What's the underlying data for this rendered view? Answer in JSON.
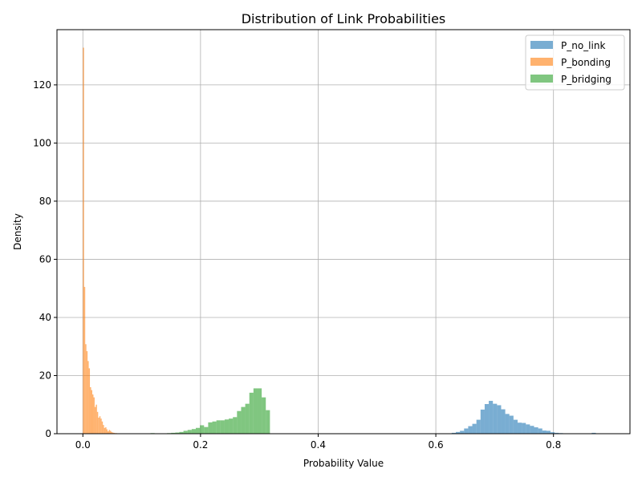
{
  "chart_data": {
    "type": "histogram",
    "title": "Distribution of Link Probabilities",
    "xlabel": "Probability Value",
    "ylabel": "Density",
    "xlim": [
      -0.044,
      0.93
    ],
    "ylim": [
      0,
      139
    ],
    "xticks": [
      0.0,
      0.2,
      0.4,
      0.6,
      0.8
    ],
    "xtick_labels": [
      "0.0",
      "0.2",
      "0.4",
      "0.6",
      "0.8"
    ],
    "yticks": [
      0,
      20,
      40,
      60,
      80,
      100,
      120
    ],
    "ytick_labels": [
      "0",
      "20",
      "40",
      "60",
      "80",
      "100",
      "120"
    ],
    "grid": true,
    "legend_position": "upper right",
    "series": [
      {
        "name": "P_no_link",
        "color": "#1f77b4",
        "opacity": 0.6,
        "bin_edges": [
          0.627,
          0.634,
          0.641,
          0.648,
          0.655,
          0.662,
          0.669,
          0.676,
          0.683,
          0.69,
          0.697,
          0.704,
          0.711,
          0.718,
          0.725,
          0.732,
          0.739,
          0.746,
          0.753,
          0.76,
          0.767,
          0.774,
          0.781,
          0.788,
          0.795,
          0.802,
          0.809,
          0.816,
          0.823,
          0.83,
          0.837,
          0.844,
          0.851,
          0.858,
          0.865,
          0.872,
          0.879,
          0.886
        ],
        "values": [
          0.3,
          0.6,
          1.0,
          1.8,
          2.6,
          3.4,
          4.8,
          8.3,
          10.2,
          11.3,
          10.3,
          9.8,
          8.4,
          6.8,
          6.2,
          4.8,
          3.8,
          3.7,
          3.2,
          2.7,
          2.2,
          1.8,
          1.1,
          1.0,
          0.5,
          0.3,
          0.2,
          0.1,
          0.1,
          0.0,
          0.1,
          0.0,
          0.0,
          0.0,
          0.3,
          0.0,
          0.0
        ]
      },
      {
        "name": "P_bonding",
        "color": "#ff7f0e",
        "opacity": 0.6,
        "bin_edges": [
          0.0,
          0.002,
          0.004,
          0.006,
          0.008,
          0.01,
          0.012,
          0.014,
          0.016,
          0.018,
          0.02,
          0.022,
          0.024,
          0.026,
          0.028,
          0.03,
          0.032,
          0.034,
          0.036,
          0.038,
          0.04,
          0.042,
          0.044,
          0.046,
          0.048,
          0.05,
          0.052,
          0.054,
          0.056,
          0.058,
          0.06,
          0.062,
          0.064,
          0.066,
          0.068,
          0.07
        ],
        "values": [
          132.8,
          50.5,
          30.8,
          28.4,
          25.0,
          22.5,
          16.0,
          15.0,
          13.5,
          12.5,
          9.2,
          10.0,
          7.5,
          5.5,
          6.0,
          5.2,
          4.2,
          3.0,
          2.0,
          2.2,
          1.5,
          0.8,
          1.3,
          1.0,
          0.6,
          0.4,
          0.3,
          0.2,
          0.2,
          0.1,
          0.1,
          0.1,
          0.0,
          0.0,
          0.1
        ]
      },
      {
        "name": "P_bridging",
        "color": "#2ca02c",
        "opacity": 0.6,
        "bin_edges": [
          0.115,
          0.122,
          0.129,
          0.136,
          0.143,
          0.15,
          0.157,
          0.164,
          0.171,
          0.178,
          0.185,
          0.192,
          0.199,
          0.206,
          0.213,
          0.22,
          0.227,
          0.234,
          0.241,
          0.248,
          0.255,
          0.262,
          0.269,
          0.276,
          0.283,
          0.29,
          0.297,
          0.304,
          0.311,
          0.318
        ],
        "values": [
          0.2,
          0.0,
          0.0,
          0.1,
          0.2,
          0.3,
          0.4,
          0.6,
          1.0,
          1.3,
          1.6,
          2.0,
          2.9,
          2.3,
          3.9,
          4.2,
          4.6,
          4.6,
          4.9,
          5.2,
          5.7,
          7.8,
          9.2,
          10.3,
          14.1,
          15.6,
          15.6,
          12.5,
          8.1,
          2.3
        ]
      }
    ]
  }
}
